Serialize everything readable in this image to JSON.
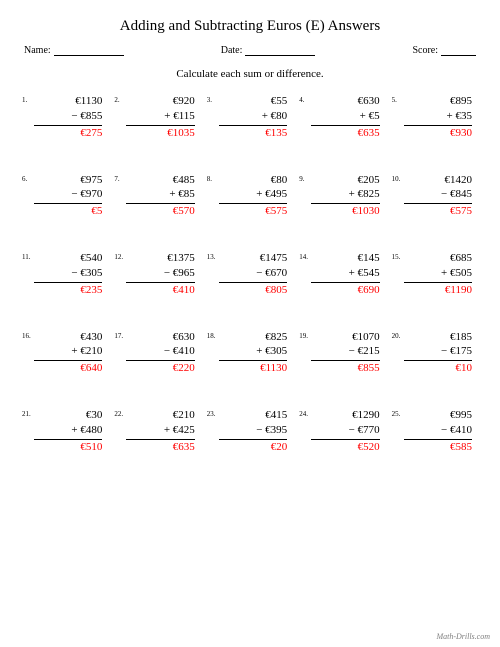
{
  "title": "Adding and Subtracting Euros (E) Answers",
  "labels": {
    "name": "Name:",
    "date": "Date:",
    "score": "Score:"
  },
  "instruction": "Calculate each sum or difference.",
  "footer": "Math-Drills.com",
  "answer_color": "#ff0000",
  "problems": [
    {
      "n": "1.",
      "a": "€1130",
      "op": "− €855",
      "r": "€275"
    },
    {
      "n": "2.",
      "a": "€920",
      "op": "+ €115",
      "r": "€1035"
    },
    {
      "n": "3.",
      "a": "€55",
      "op": "+ €80",
      "r": "€135"
    },
    {
      "n": "4.",
      "a": "€630",
      "op": "+ €5",
      "r": "€635"
    },
    {
      "n": "5.",
      "a": "€895",
      "op": "+ €35",
      "r": "€930"
    },
    {
      "n": "6.",
      "a": "€975",
      "op": "− €970",
      "r": "€5"
    },
    {
      "n": "7.",
      "a": "€485",
      "op": "+ €85",
      "r": "€570"
    },
    {
      "n": "8.",
      "a": "€80",
      "op": "+ €495",
      "r": "€575"
    },
    {
      "n": "9.",
      "a": "€205",
      "op": "+ €825",
      "r": "€1030"
    },
    {
      "n": "10.",
      "a": "€1420",
      "op": "− €845",
      "r": "€575"
    },
    {
      "n": "11.",
      "a": "€540",
      "op": "− €305",
      "r": "€235"
    },
    {
      "n": "12.",
      "a": "€1375",
      "op": "− €965",
      "r": "€410"
    },
    {
      "n": "13.",
      "a": "€1475",
      "op": "− €670",
      "r": "€805"
    },
    {
      "n": "14.",
      "a": "€145",
      "op": "+ €545",
      "r": "€690"
    },
    {
      "n": "15.",
      "a": "€685",
      "op": "+ €505",
      "r": "€1190"
    },
    {
      "n": "16.",
      "a": "€430",
      "op": "+ €210",
      "r": "€640"
    },
    {
      "n": "17.",
      "a": "€630",
      "op": "− €410",
      "r": "€220"
    },
    {
      "n": "18.",
      "a": "€825",
      "op": "+ €305",
      "r": "€1130"
    },
    {
      "n": "19.",
      "a": "€1070",
      "op": "− €215",
      "r": "€855"
    },
    {
      "n": "20.",
      "a": "€185",
      "op": "− €175",
      "r": "€10"
    },
    {
      "n": "21.",
      "a": "€30",
      "op": "+ €480",
      "r": "€510"
    },
    {
      "n": "22.",
      "a": "€210",
      "op": "+ €425",
      "r": "€635"
    },
    {
      "n": "23.",
      "a": "€415",
      "op": "− €395",
      "r": "€20"
    },
    {
      "n": "24.",
      "a": "€1290",
      "op": "− €770",
      "r": "€520"
    },
    {
      "n": "25.",
      "a": "€995",
      "op": "− €410",
      "r": "€585"
    }
  ]
}
